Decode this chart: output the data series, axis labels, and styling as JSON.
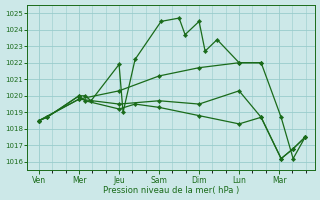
{
  "title": "",
  "xlabel": "Pression niveau de la mer( hPa )",
  "background_color": "#cce8e8",
  "grid_color": "#99cccc",
  "line_color": "#1a6b1a",
  "ylim": [
    1015.5,
    1025.5
  ],
  "yticks": [
    1016,
    1017,
    1018,
    1019,
    1020,
    1021,
    1022,
    1023,
    1024,
    1025
  ],
  "x_labels": [
    "Ven",
    "Mer",
    "Jeu",
    "Sam",
    "Dim",
    "Lun",
    "Mar"
  ],
  "x_positions": [
    0,
    1,
    2,
    3,
    4,
    5,
    6
  ],
  "xlim": [
    -0.3,
    6.9
  ],
  "series": [
    {
      "x": [
        0.0,
        0.2,
        1.0,
        1.15,
        1.3,
        2.0,
        2.1,
        2.4,
        3.05,
        3.5,
        3.65,
        4.0,
        4.15,
        4.45,
        5.0,
        5.55,
        6.05,
        6.35,
        6.65
      ],
      "y": [
        1018.5,
        1018.7,
        1020.0,
        1020.0,
        1019.7,
        1021.9,
        1019.0,
        1022.2,
        1024.5,
        1024.7,
        1023.7,
        1024.5,
        1022.7,
        1023.4,
        1022.0,
        1022.0,
        1018.7,
        1016.2,
        1017.5
      ]
    },
    {
      "x": [
        0.0,
        0.2,
        1.0,
        1.15,
        2.0,
        2.4,
        3.0,
        4.0,
        5.0,
        5.55,
        6.05,
        6.35,
        6.65
      ],
      "y": [
        1018.5,
        1018.7,
        1020.0,
        1019.7,
        1019.2,
        1019.5,
        1019.3,
        1018.8,
        1018.3,
        1018.7,
        1016.2,
        1016.8,
        1017.5
      ]
    },
    {
      "x": [
        0.0,
        1.0,
        2.0,
        3.0,
        4.0,
        5.0,
        5.55,
        6.05,
        6.35,
        6.65
      ],
      "y": [
        1018.5,
        1019.8,
        1019.5,
        1019.7,
        1019.5,
        1020.3,
        1018.7,
        1016.2,
        1016.8,
        1017.5
      ]
    },
    {
      "x": [
        0.0,
        1.0,
        2.0,
        3.0,
        4.0,
        5.0,
        5.55
      ],
      "y": [
        1018.5,
        1019.8,
        1020.3,
        1021.2,
        1021.7,
        1022.0,
        1022.0
      ]
    }
  ]
}
